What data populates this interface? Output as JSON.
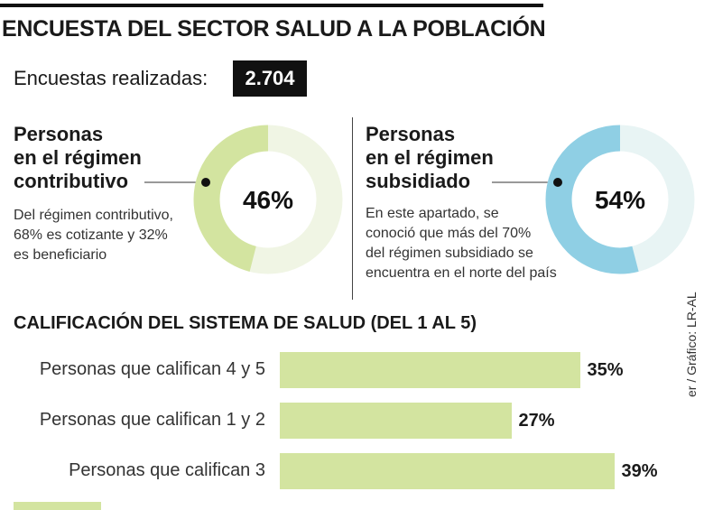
{
  "title": "ENCUESTA DEL SECTOR SALUD A LA POBLACIÓN",
  "surveys": {
    "label": "Encuestas realizadas:",
    "value": "2.704"
  },
  "segments": [
    {
      "title_lines": [
        "Personas",
        "en el régimen",
        "contributivo"
      ],
      "desc_lines": [
        "Del régimen contributivo,",
        "68% es cotizante y 32%",
        "es beneficiario"
      ],
      "percent": 46,
      "percent_label": "46%",
      "color": "#d3e4a0",
      "track_color": "#f0f5e4"
    },
    {
      "title_lines": [
        "Personas",
        "en el régimen",
        "subsidiado"
      ],
      "desc_lines": [
        " En este apartado, se",
        "conoció que más del 70%",
        "del régimen subsidiado se",
        "encuentra en el norte del país"
      ],
      "percent": 54,
      "percent_label": "54%",
      "color": "#8fcfe4",
      "track_color": "#e8f4f4"
    }
  ],
  "ratings_title": "CALIFICACIÓN DEL SISTEMA DE SALUD (DEL 1 AL 5)",
  "credit": "er / Gráfico: LR-AL",
  "chart_data": [
    {
      "type": "pie",
      "title": "Personas en el régimen contributivo",
      "categories": [
        "Personas en el régimen contributivo"
      ],
      "values": [
        46
      ],
      "unit": "%"
    },
    {
      "type": "pie",
      "title": "Personas en el régimen subsidiado",
      "categories": [
        "Personas en el régimen subsidiado"
      ],
      "values": [
        54
      ],
      "unit": "%"
    },
    {
      "type": "bar",
      "orientation": "horizontal",
      "title": "CALIFICACIÓN DEL SISTEMA DE SALUD (DEL 1 AL 5)",
      "categories": [
        "Personas que califican 4 y 5",
        "Personas que califican 1 y 2",
        "Personas que califican 3"
      ],
      "values": [
        35,
        27,
        39
      ],
      "value_labels": [
        "35%",
        "27%",
        "39%"
      ],
      "xlim": [
        0,
        40
      ],
      "color": "#d3e4a0"
    }
  ]
}
